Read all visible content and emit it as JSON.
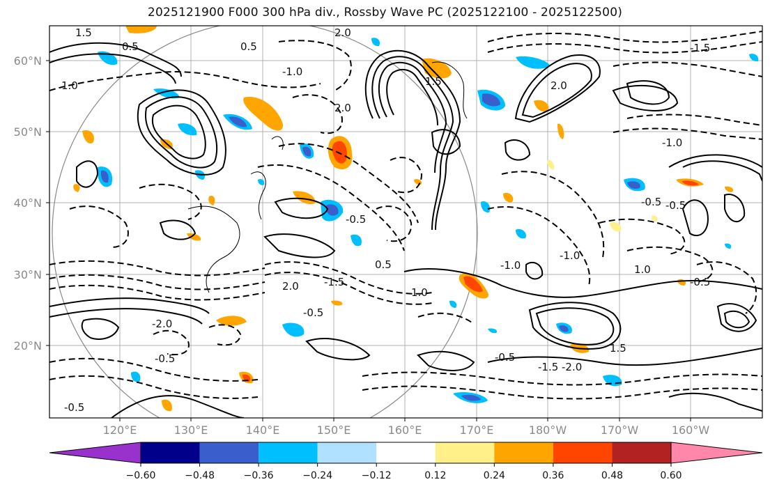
{
  "title": "2025121900 F000 300 hPa div., Rossby Wave PC (2025122100 - 2025122500)",
  "map": {
    "lat_labels": [
      "60°N",
      "50°N",
      "40°N",
      "30°N",
      "20°N"
    ],
    "lon_labels": [
      "120°E",
      "130°E",
      "140°E",
      "150°E",
      "160°E",
      "170°E",
      "180°W",
      "170°W",
      "160°W"
    ],
    "contour_labels": [
      "1.5",
      "2.0",
      "0.5",
      "1.0",
      "1.5",
      "2.0",
      "0.5",
      "2.0",
      "1.0",
      "0.5",
      "1.5",
      "1.0",
      "2.0",
      "-0.5",
      "-1.0",
      "-1.5",
      "-2.0",
      "-0.5",
      "-0.5",
      "-1.0",
      "-0.5",
      "-1.5",
      "-2.0",
      "-0.5",
      "-1.0",
      "-0.5",
      "-0.5",
      "-1.0",
      "-1.5",
      "-0.5"
    ]
  },
  "colorbar": {
    "ticks": [
      "−0.60",
      "−0.48",
      "−0.36",
      "−0.24",
      "−0.12",
      "0.12",
      "0.24",
      "0.36",
      "0.48",
      "0.60"
    ],
    "colors": [
      "#9932cc",
      "#00008b",
      "#3a5fcd",
      "#00bfff",
      "#b0e2ff",
      "#ffffff",
      "#fff08a",
      "#ffa500",
      "#ff4500",
      "#b22222",
      "#ff88aa"
    ]
  }
}
